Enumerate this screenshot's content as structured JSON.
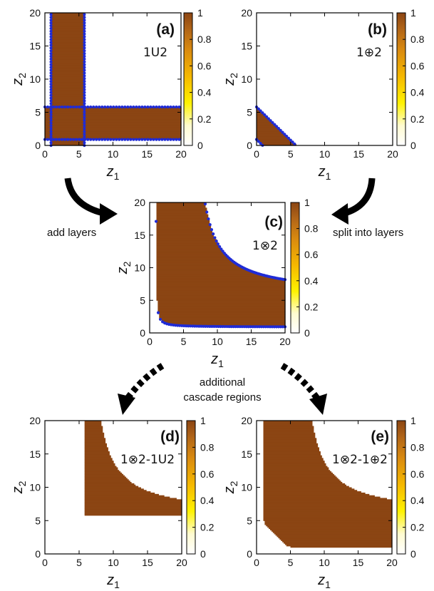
{
  "colors": {
    "brown": "#8b4513",
    "dot": "#1f2bd6"
  },
  "colorbar": {
    "ticks": [
      "0",
      "0.2",
      "0.4",
      "0.6",
      "0.8",
      "1"
    ]
  },
  "annotations": {
    "add_layers": "add layers",
    "split_layers": "split into layers",
    "cascade_line1": "additional",
    "cascade_line2": "cascade regions"
  },
  "chart_data": [
    {
      "id": "a",
      "type": "heatmap",
      "tag": "(a)",
      "expr": "1U2",
      "xlabel": "z1",
      "ylabel": "z2",
      "xlim": [
        0,
        20
      ],
      "ylim": [
        0,
        20
      ],
      "xticks": [
        "0",
        "5",
        "10",
        "15",
        "20"
      ],
      "yticks": [
        "0",
        "5",
        "10",
        "15",
        "20"
      ],
      "colorbar_range": [
        0,
        1
      ],
      "region": "union of band 0.9<z1<5.8 and band 0.9<z2<5.8",
      "boundary_lines": {
        "vertical_z1": [
          0.9,
          5.8
        ],
        "horizontal_z2": [
          0.9,
          5.8
        ]
      }
    },
    {
      "id": "b",
      "type": "heatmap",
      "tag": "(b)",
      "expr": "1⊕2",
      "xlabel": "z1",
      "ylabel": "z2",
      "xlim": [
        0,
        20
      ],
      "ylim": [
        0,
        20
      ],
      "xticks": [
        "0",
        "5",
        "10",
        "15",
        "20"
      ],
      "yticks": [
        "0",
        "5",
        "10",
        "15",
        "20"
      ],
      "colorbar_range": [
        0,
        1
      ],
      "region": "triangle 0.9 < z1+z2 < 5.8",
      "boundary_lines": {
        "diagonal_sum": [
          0.9,
          5.8
        ]
      }
    },
    {
      "id": "c",
      "type": "heatmap",
      "tag": "(c)",
      "expr": "1⊗2",
      "xlabel": "z1",
      "ylabel": "z2",
      "xlim": [
        0,
        20
      ],
      "ylim": [
        0,
        20
      ],
      "xticks": [
        "0",
        "5",
        "10",
        "15",
        "20"
      ],
      "yticks": [
        "0",
        "5",
        "10",
        "15",
        "20"
      ],
      "colorbar_range": [
        0,
        1
      ],
      "region": "0.9 < z1*z2/(z1+z2) < 5.8 (parallel combination)",
      "boundary_lines": {
        "product_parallel": [
          0.9,
          5.8
        ]
      }
    },
    {
      "id": "d",
      "type": "heatmap",
      "tag": "(d)",
      "expr": "1⊗2-1U2",
      "xlabel": "z1",
      "ylabel": "z2",
      "xlim": [
        0,
        20
      ],
      "ylim": [
        0,
        20
      ],
      "xticks": [
        "0",
        "5",
        "10",
        "15",
        "20"
      ],
      "yticks": [
        "0",
        "5",
        "10",
        "15",
        "20"
      ],
      "colorbar_range": [
        0,
        1
      ],
      "region": "(c) minus (a)"
    },
    {
      "id": "e",
      "type": "heatmap",
      "tag": "(e)",
      "expr": "1⊗2-1⊕2",
      "xlabel": "z1",
      "ylabel": "z2",
      "xlim": [
        0,
        20
      ],
      "ylim": [
        0,
        20
      ],
      "xticks": [
        "0",
        "5",
        "10",
        "15",
        "20"
      ],
      "yticks": [
        "0",
        "5",
        "10",
        "15",
        "20"
      ],
      "colorbar_range": [
        0,
        1
      ],
      "region": "(c) minus (b)"
    }
  ]
}
